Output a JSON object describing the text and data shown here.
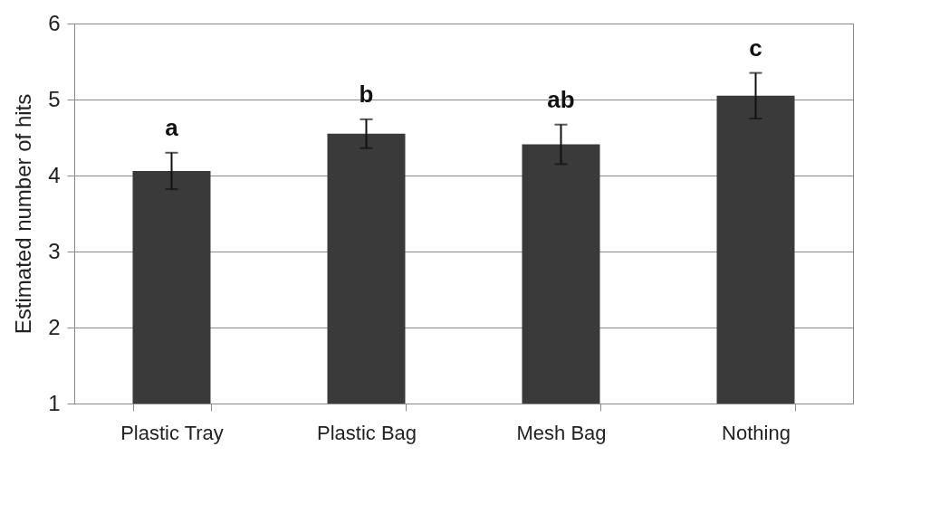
{
  "chart_data": {
    "type": "bar",
    "ylabel": "Estimated number of hits",
    "categories": [
      "Plastic Tray",
      "Plastic Bag",
      "Mesh Bag",
      "Nothing"
    ],
    "values": [
      4.06,
      4.55,
      4.41,
      5.05
    ],
    "errors": [
      0.24,
      0.19,
      0.26,
      0.3
    ],
    "color": "#3a3a3a",
    "ylim": [
      1,
      6
    ],
    "yticks": [
      1,
      2,
      3,
      4,
      5,
      6
    ],
    "grid": "y",
    "annotations": [
      "a",
      "b",
      "ab",
      "c"
    ]
  }
}
